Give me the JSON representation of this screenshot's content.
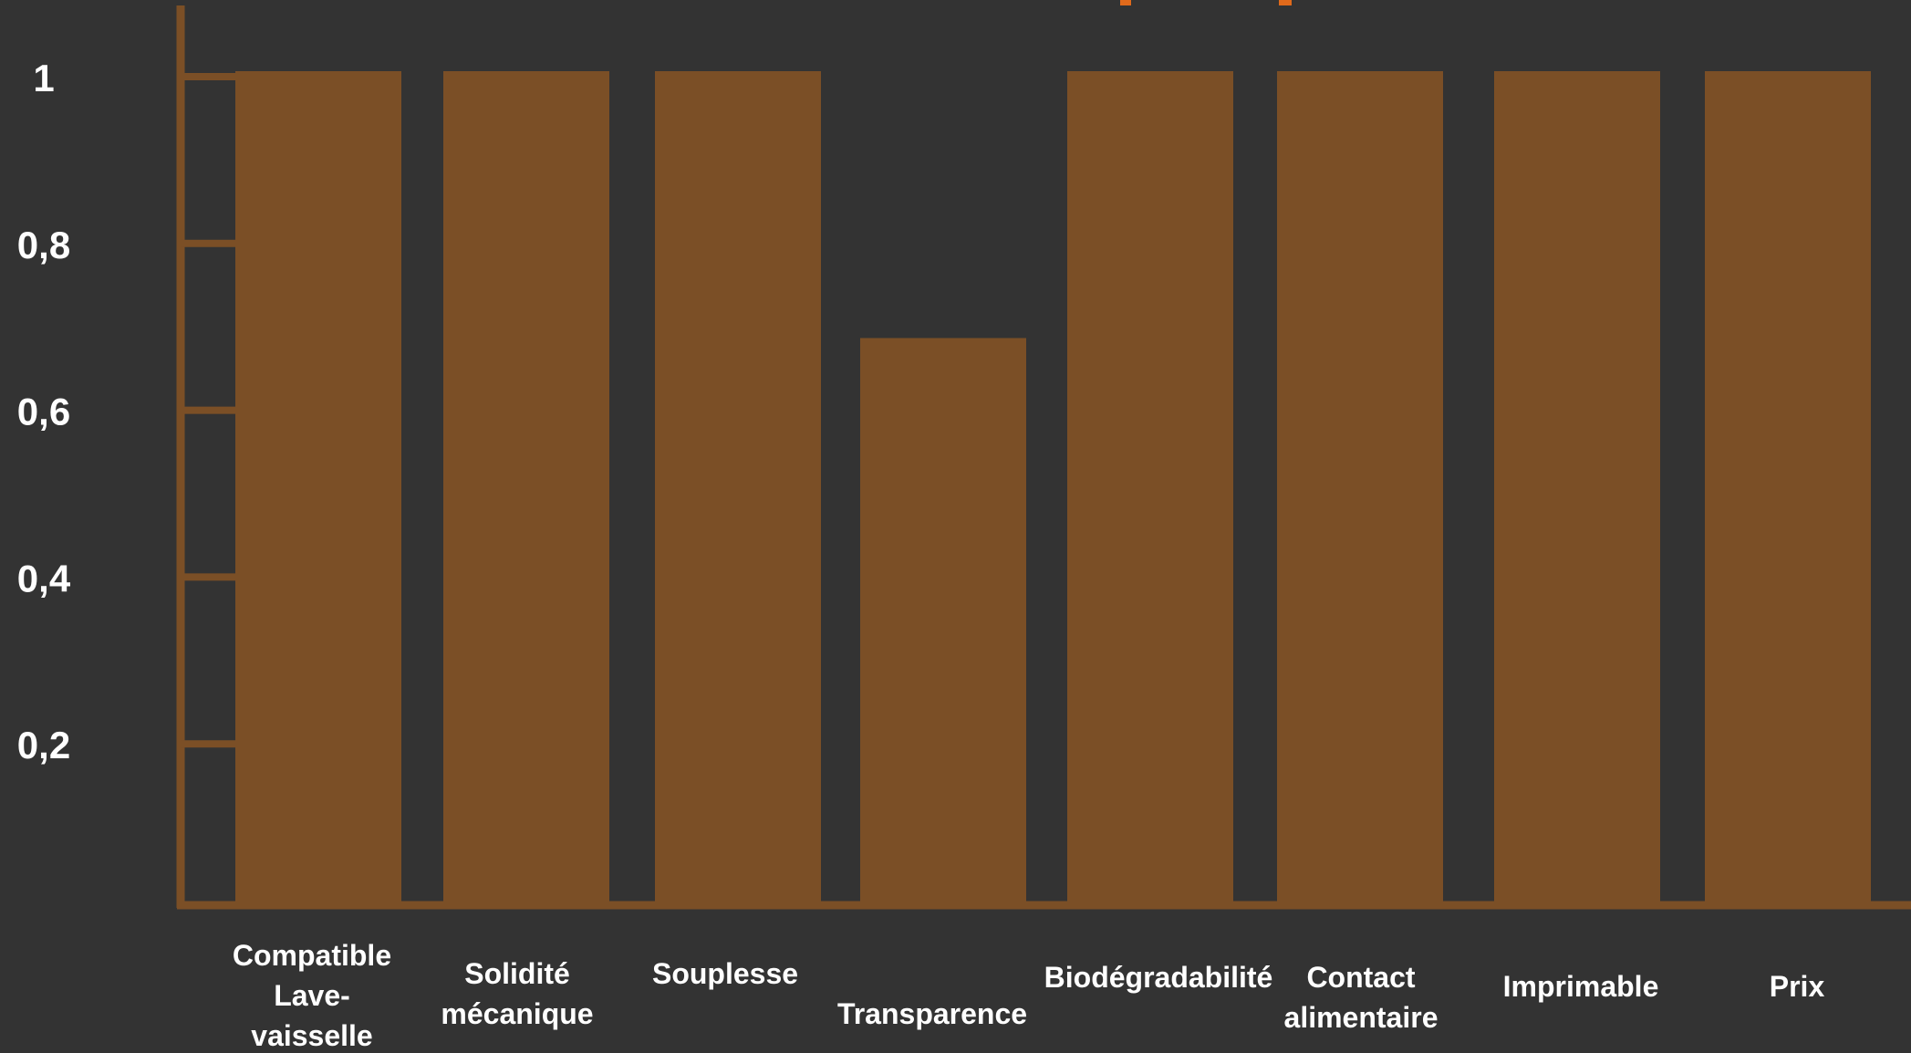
{
  "colors": {
    "background": "#333333",
    "bar": "#7b4f26",
    "axis": "#7b4f26",
    "text": "#ffffff",
    "title_accent": "#e06a1b"
  },
  "chart_data": {
    "type": "bar",
    "title": "",
    "xlabel": "",
    "ylabel": "",
    "categories": [
      "Compatible Lave-vaisselle",
      "Solidité mécanique",
      "Souplesse",
      "Transparence",
      "Biodégradabilité",
      "Contact alimentaire",
      "Imprimable",
      "Prix"
    ],
    "category_label_lines": [
      [
        "Compatible",
        "Lave-",
        "vaisselle"
      ],
      [
        "Solidité",
        "mécanique"
      ],
      [
        "Souplesse"
      ],
      [
        "Transparence"
      ],
      [
        "Biodégradabilité"
      ],
      [
        "Contact",
        "alimentaire"
      ],
      [
        "Imprimable"
      ],
      [
        "Prix"
      ]
    ],
    "values": [
      1,
      1,
      1,
      0.68,
      1,
      1,
      1,
      1
    ],
    "ylim": [
      0,
      1
    ],
    "yticks": [
      0.2,
      0.4,
      0.6,
      0.8,
      1
    ],
    "ytick_labels": [
      "0,2",
      "0,4",
      "0,6",
      "0,8",
      "1"
    ],
    "grid": false,
    "legend": "none"
  }
}
